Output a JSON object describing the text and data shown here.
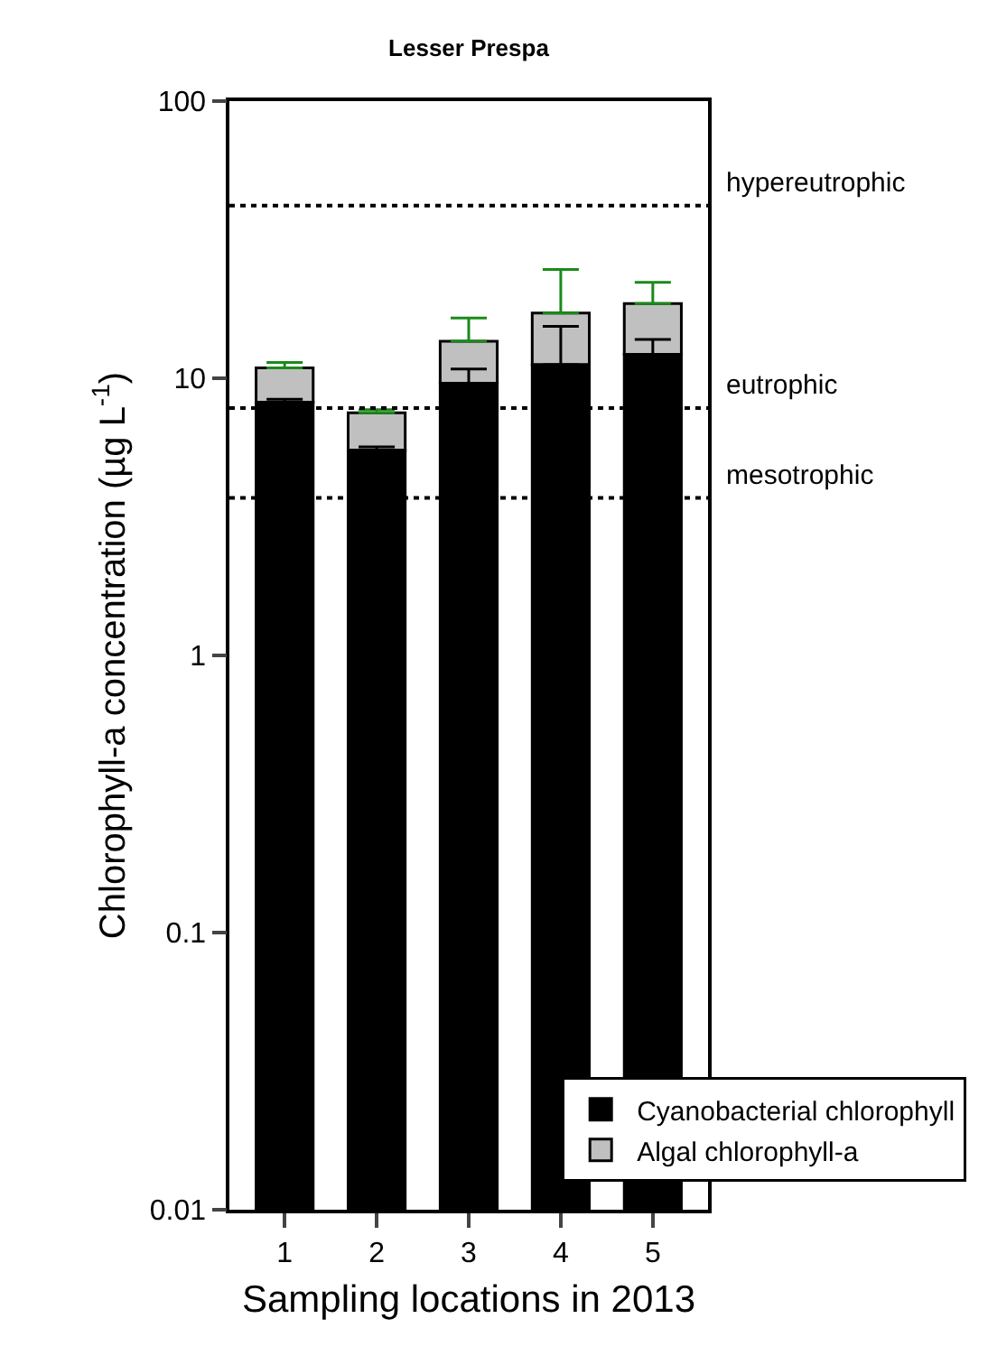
{
  "chart_data": {
    "type": "bar",
    "title": "Lesser Prespa",
    "xlabel": "Sampling locations in 2013",
    "ylabel": "Chlorophyll-a concentration (µg L$^{-1}$)",
    "categories": [
      "1",
      "2",
      "3",
      "4",
      "5"
    ],
    "stacked": true,
    "log": true,
    "ylim": [
      0.01,
      100
    ],
    "yticks": [
      0.01,
      0.1,
      1,
      10,
      100
    ],
    "series": [
      {
        "name": "Cyanobacterial chlorophyll",
        "color": "#000000",
        "values": [
          8.2,
          5.5,
          9.6,
          11.2,
          12.2
        ],
        "errors": [
          [
            8.2,
            8.4
          ],
          [
            5.5,
            5.65
          ],
          [
            9.6,
            10.8
          ],
          [
            11.2,
            15.4
          ],
          [
            12.2,
            13.8
          ]
        ]
      },
      {
        "name": "Algal chlorophyll-a",
        "color": "#c0c0c0",
        "values": [
          2.7,
          2.0,
          4.0,
          6.0,
          6.4
        ],
        "errors": [
          [
            10.9,
            11.4
          ],
          [
            7.5,
            7.7
          ],
          [
            13.6,
            16.5
          ],
          [
            17.2,
            24.7
          ],
          [
            18.6,
            22.2
          ]
        ]
      }
    ],
    "ref_lines": [
      {
        "axis": "y",
        "value": 42,
        "line_style": "dotted",
        "label": "hypereutrophic"
      },
      {
        "axis": "y",
        "value": 7.8,
        "line_style": "dotted",
        "label": "eutrophic"
      },
      {
        "axis": "y",
        "value": 3.7,
        "line_style": "dotted",
        "label": "mesotrophic"
      }
    ],
    "legend": "bottom right",
    "grid": false
  }
}
